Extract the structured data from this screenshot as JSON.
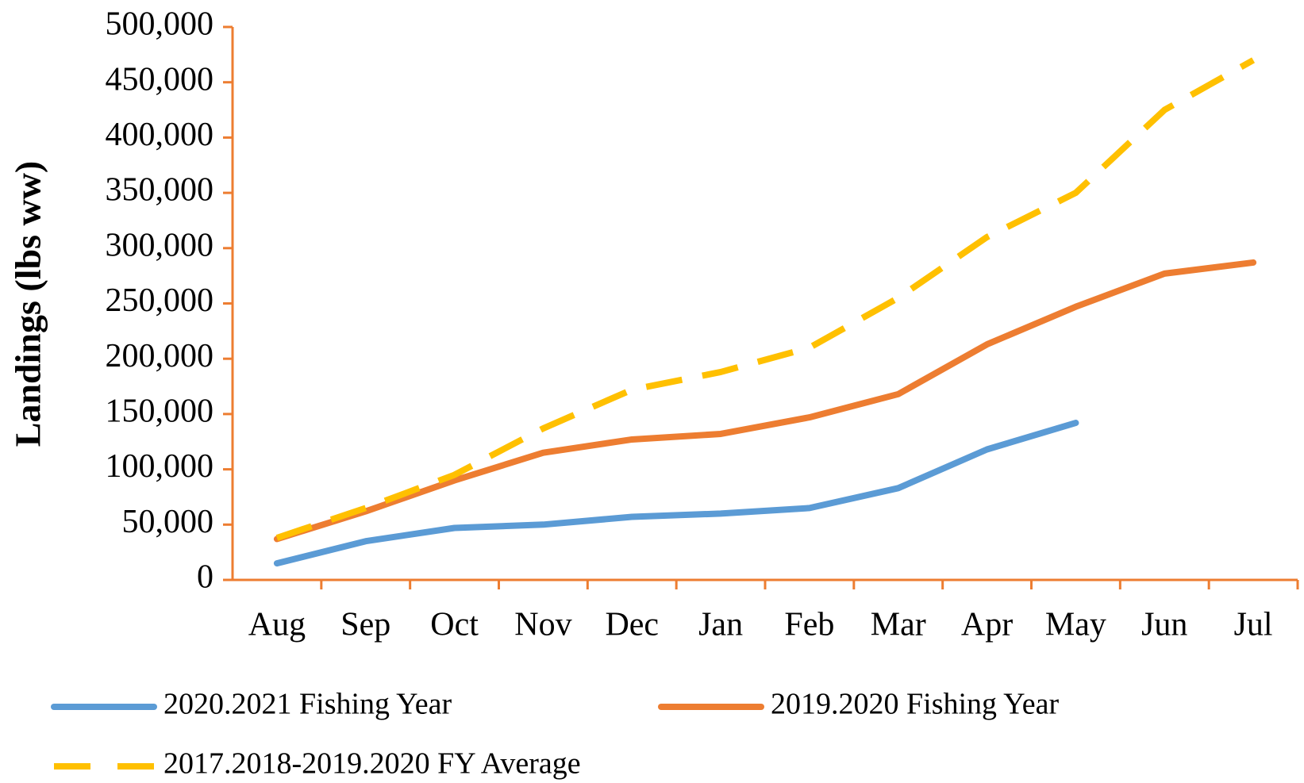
{
  "chart_data": {
    "type": "line",
    "ylabel": "Landings (lbs ww)",
    "categories": [
      "Aug",
      "Sep",
      "Oct",
      "Nov",
      "Dec",
      "Jan",
      "Feb",
      "Mar",
      "Apr",
      "May",
      "Jun",
      "Jul"
    ],
    "series": [
      {
        "name": "2020.2021 Fishing Year",
        "color": "#5b9bd5",
        "dash": false,
        "values": [
          15000,
          35000,
          47000,
          50000,
          57000,
          60000,
          65000,
          83000,
          118000,
          142000,
          null,
          null
        ]
      },
      {
        "name": "2019.2020 Fishing Year",
        "color": "#ed7d31",
        "dash": false,
        "values": [
          37000,
          62000,
          90000,
          115000,
          127000,
          132000,
          147000,
          168000,
          213000,
          247000,
          277000,
          287000
        ]
      },
      {
        "name": "2017.2018-2019.2020 FY Average",
        "color": "#ffc000",
        "dash": true,
        "values": [
          38000,
          65000,
          95000,
          137000,
          172000,
          188000,
          210000,
          255000,
          310000,
          350000,
          425000,
          470000
        ]
      }
    ],
    "ylim": [
      0,
      500000
    ],
    "yticks": [
      0,
      {
        "value": 50000,
        "label": "50,000"
      },
      {
        "value": 100000,
        "label": "100,000"
      },
      {
        "value": 150000,
        "label": "150,000"
      },
      {
        "value": 200000,
        "label": "200,000"
      },
      {
        "value": 250000,
        "label": "250,000"
      },
      {
        "value": 300000,
        "label": "300,000"
      },
      {
        "value": 350000,
        "label": "350,000"
      },
      {
        "value": 400000,
        "label": "400,000"
      },
      {
        "value": 450000,
        "label": "450,000"
      },
      {
        "value": 500000,
        "label": "500,000"
      }
    ],
    "grid": false,
    "axis_color": "#ed7d31",
    "legend": "bottom"
  }
}
